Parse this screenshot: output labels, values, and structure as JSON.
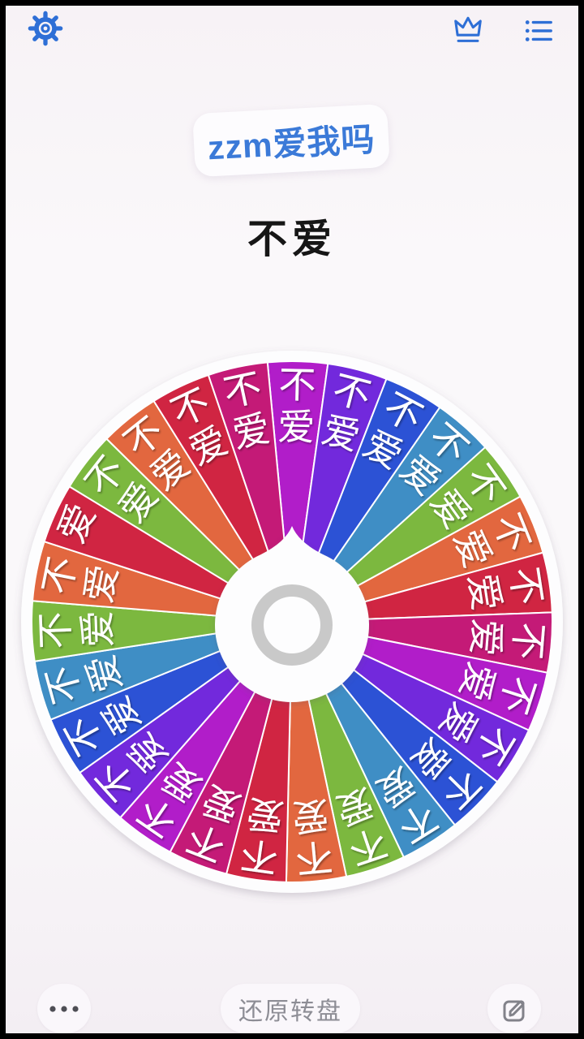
{
  "background": {
    "page_bg": "#f7f2f6",
    "frame_color": "#000000"
  },
  "header": {
    "icon_color": "#2e6fd6",
    "settings_icon": "gear",
    "crown_icon": "crown",
    "list_icon": "bulleted-list"
  },
  "title_bubble": {
    "text": "zzm爱我吗",
    "text_color": "#3b7ad8",
    "bg": "#fdfcfe"
  },
  "result": {
    "text": "不爱",
    "color": "#161616"
  },
  "wheel": {
    "pointer": "teardrop-hub-pointer",
    "hub_color": "#fdfdfe",
    "hub_ring_color": "#c9c9c9",
    "divider_color": "#ffffff",
    "label_color": "#ffffff",
    "segments": [
      {
        "label": "不爱",
        "color": "#b11dc9"
      },
      {
        "label": "不爱",
        "color": "#7229dc"
      },
      {
        "label": "不爱",
        "color": "#2c52d5"
      },
      {
        "label": "不爱",
        "color": "#3f8ec5"
      },
      {
        "label": "不爱",
        "color": "#7cb83f"
      },
      {
        "label": "不爱",
        "color": "#e2673f"
      },
      {
        "label": "不爱",
        "color": "#d02542"
      },
      {
        "label": "不爱",
        "color": "#c41a77"
      },
      {
        "label": "不爱",
        "color": "#b11dc9"
      },
      {
        "label": "不爱",
        "color": "#7229dc"
      },
      {
        "label": "不爱",
        "color": "#2c52d5"
      },
      {
        "label": "不爱",
        "color": "#3f8ec5"
      },
      {
        "label": "不爱",
        "color": "#7cb83f"
      },
      {
        "label": "不爱",
        "color": "#e2673f"
      },
      {
        "label": "不爱",
        "color": "#d02542"
      },
      {
        "label": "不爱",
        "color": "#c41a77"
      },
      {
        "label": "不爱",
        "color": "#b11dc9"
      },
      {
        "label": "不爱",
        "color": "#7229dc"
      },
      {
        "label": "不爱",
        "color": "#2c52d5"
      },
      {
        "label": "不爱",
        "color": "#3f8ec5"
      },
      {
        "label": "不爱",
        "color": "#7cb83f"
      },
      {
        "label": "不爱",
        "color": "#e2673f"
      },
      {
        "label": "爱",
        "color": "#d02542"
      },
      {
        "label": "不爱",
        "color": "#7cb83f"
      },
      {
        "label": "不爱",
        "color": "#e2673f"
      },
      {
        "label": "不爱",
        "color": "#d02542"
      },
      {
        "label": "不爱",
        "color": "#c41a77"
      }
    ]
  },
  "footer": {
    "more_icon": "three-dots",
    "reset_label": "还原转盘",
    "edit_icon": "edit-pencil",
    "button_bg": "#faf7fb",
    "text_color": "#8d8d95"
  }
}
